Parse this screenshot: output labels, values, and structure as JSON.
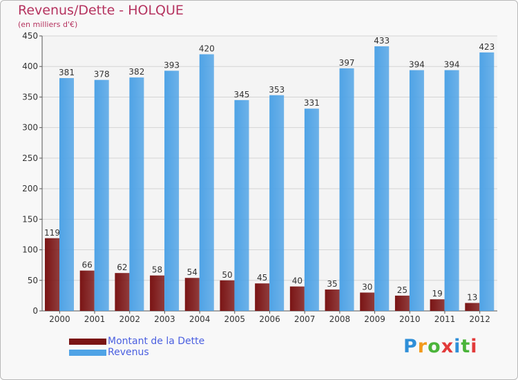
{
  "chart_data": {
    "type": "bar",
    "title": "Revenus/Dette - HOLQUE",
    "subtitle": "(en milliers d'€)",
    "categories": [
      "2000",
      "2001",
      "2002",
      "2003",
      "2004",
      "2005",
      "2006",
      "2007",
      "2008",
      "2009",
      "2010",
      "2011",
      "2012"
    ],
    "series": [
      {
        "name": "Montant de la Dette",
        "color": "#7a1414",
        "values": [
          119,
          66,
          62,
          58,
          54,
          50,
          45,
          40,
          35,
          30,
          25,
          19,
          13
        ]
      },
      {
        "name": "Revenus",
        "color": "#4fa3e6",
        "values": [
          381,
          378,
          382,
          393,
          420,
          345,
          353,
          331,
          397,
          433,
          394,
          394,
          423
        ]
      }
    ],
    "ylim": [
      0,
      450
    ],
    "yticks": [
      0,
      50,
      100,
      150,
      200,
      250,
      300,
      350,
      400,
      450
    ],
    "grid": true,
    "legend": "bottom-left"
  },
  "logo": {
    "text": "Proxiti",
    "letters": [
      "P",
      "r",
      "o",
      "x",
      "i",
      "t",
      "i"
    ],
    "colors": [
      "#2f8fd8",
      "#f29a1d",
      "#4bb43a",
      "#e23a3a",
      "#2f8fd8",
      "#4bb43a",
      "#e23a3a"
    ]
  }
}
